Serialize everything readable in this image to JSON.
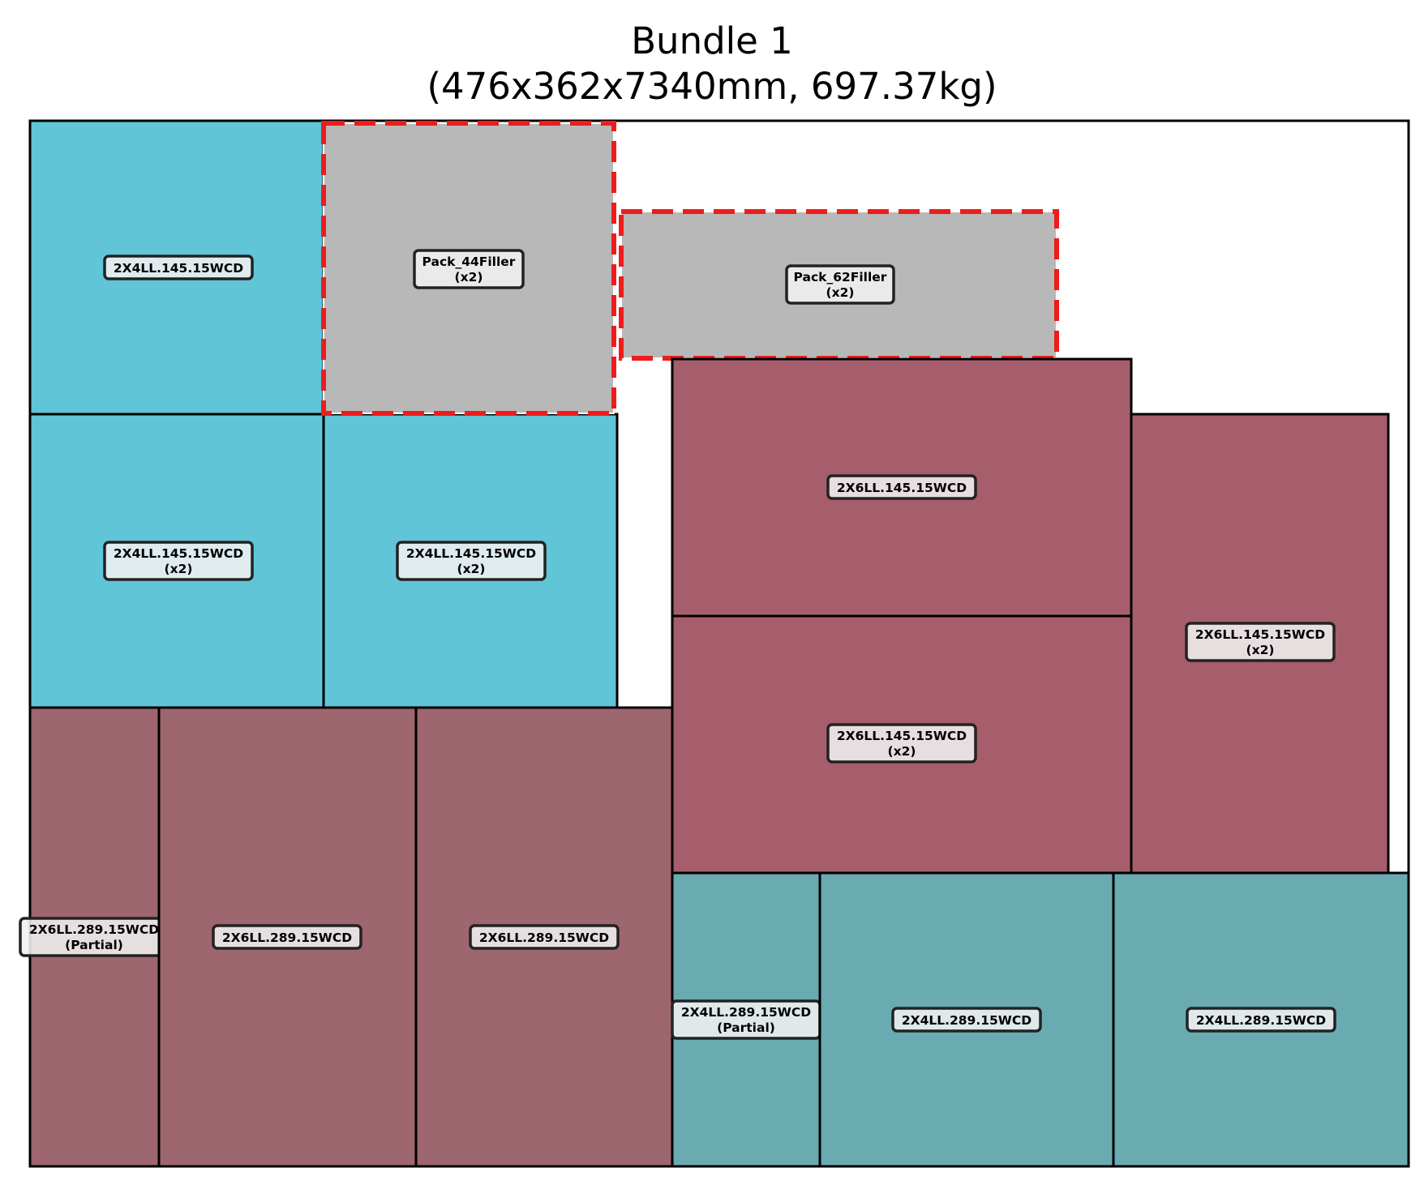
{
  "title": {
    "line1": "Bundle 1",
    "line2": "(476x362x7340mm, 697.37kg)"
  },
  "bundle": {
    "width_mm": 476,
    "height_mm": 362,
    "length_mm": 7340,
    "weight_kg": 697.37
  },
  "colors": {
    "blue_2x4_145": "#61c5d8",
    "red_2x6_145": "#a65e6c",
    "red_2x6_289": "#9e666e",
    "teal_2x4_289": "#6aabb2",
    "filler": "#b8b8b8",
    "filler_border": "#ee1c1c",
    "border": "#000000",
    "label_bg": "#f0f0f0"
  },
  "pieces": [
    {
      "name": "2X4LL.145.15WCD",
      "label": "2X4LL.145.15WCD",
      "sub": "",
      "color": "blue_2x4_145",
      "filler": false
    },
    {
      "name": "2X4LL.145.15WCD",
      "label": "2X4LL.145.15WCD",
      "sub": "(x2)",
      "color": "blue_2x4_145",
      "filler": false
    },
    {
      "name": "2X4LL.145.15WCD",
      "label": "2X4LL.145.15WCD",
      "sub": "(x2)",
      "color": "blue_2x4_145",
      "filler": false
    },
    {
      "name": "Pack_44Filler",
      "label": "Pack_44Filler",
      "sub": "(x2)",
      "color": "filler",
      "filler": true
    },
    {
      "name": "Pack_62Filler",
      "label": "Pack_62Filler",
      "sub": "(x2)",
      "color": "filler",
      "filler": true
    },
    {
      "name": "2X6LL.145.15WCD",
      "label": "2X6LL.145.15WCD",
      "sub": "",
      "color": "red_2x6_145",
      "filler": false
    },
    {
      "name": "2X6LL.145.15WCD",
      "label": "2X6LL.145.15WCD",
      "sub": "(x2)",
      "color": "red_2x6_145",
      "filler": false
    },
    {
      "name": "2X6LL.145.15WCD",
      "label": "2X6LL.145.15WCD",
      "sub": "(x2)",
      "color": "red_2x6_145",
      "filler": false
    },
    {
      "name": "2X6LL.289.15WCD",
      "label": "2X6LL.289.15WCD",
      "sub": "(Partial)",
      "color": "red_2x6_289",
      "filler": false
    },
    {
      "name": "2X6LL.289.15WCD",
      "label": "2X6LL.289.15WCD",
      "sub": "",
      "color": "red_2x6_289",
      "filler": false
    },
    {
      "name": "2X6LL.289.15WCD",
      "label": "2X6LL.289.15WCD",
      "sub": "",
      "color": "red_2x6_289",
      "filler": false
    },
    {
      "name": "2X4LL.289.15WCD",
      "label": "2X4LL.289.15WCD",
      "sub": "(Partial)",
      "color": "teal_2x4_289",
      "filler": false
    },
    {
      "name": "2X4LL.289.15WCD",
      "label": "2X4LL.289.15WCD",
      "sub": "",
      "color": "teal_2x4_289",
      "filler": false
    },
    {
      "name": "2X4LL.289.15WCD",
      "label": "2X4LL.289.15WCD",
      "sub": "",
      "color": "teal_2x4_289",
      "filler": false
    }
  ]
}
